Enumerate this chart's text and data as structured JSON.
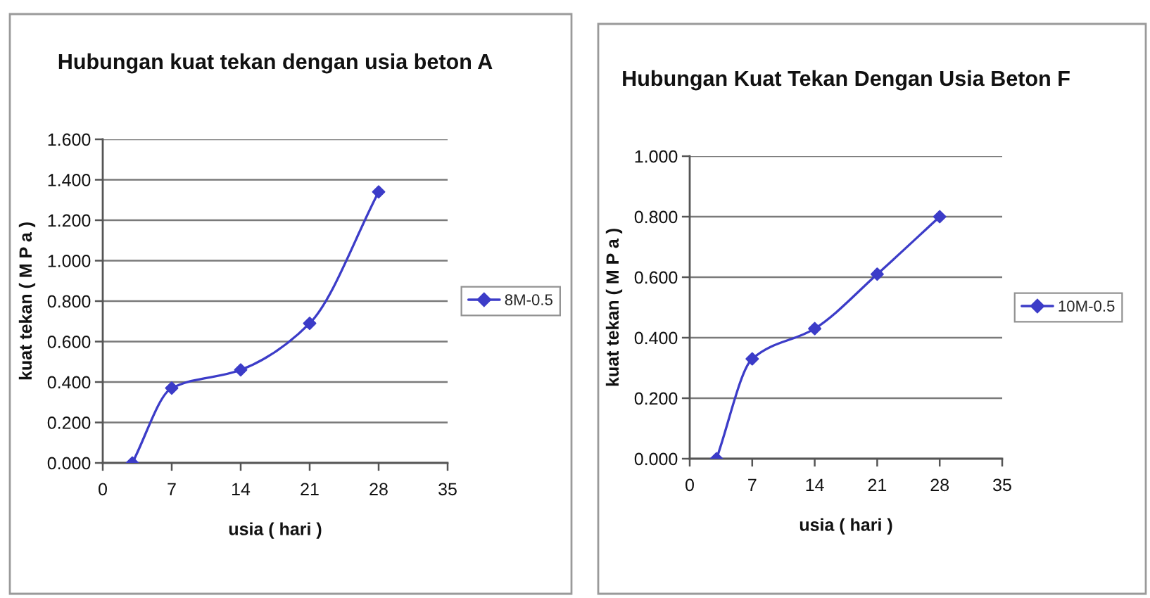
{
  "chart_data": [
    {
      "type": "line",
      "title": "Hubungan kuat tekan dengan usia beton A",
      "xlabel": "usia ( hari )",
      "ylabel": "kuat tekan ( M P a )",
      "x": [
        3,
        7,
        14,
        21,
        28
      ],
      "series": [
        {
          "name": "8M-0.5",
          "color": "#3c3cc8",
          "values": [
            0.0,
            0.37,
            0.46,
            0.69,
            1.34
          ]
        }
      ],
      "xlim": [
        0,
        35
      ],
      "xticks": [
        0,
        7,
        14,
        21,
        28,
        35
      ],
      "ylim": [
        0,
        1.6
      ],
      "yticks": [
        {
          "value": 0,
          "label": "0.000"
        },
        {
          "value": 0.2,
          "label": "0.200"
        },
        {
          "value": 0.4,
          "label": "0.400"
        },
        {
          "value": 0.6,
          "label": "0.600"
        },
        {
          "value": 0.8,
          "label": "0.800"
        },
        {
          "value": 1.0,
          "label": "1.000"
        },
        {
          "value": 1.2,
          "label": "1.200"
        },
        {
          "value": 1.4,
          "label": "1.400"
        },
        {
          "value": 1.6,
          "label": "1.600"
        }
      ],
      "grid": "y",
      "legend": "right",
      "marker": "diamond"
    },
    {
      "type": "line",
      "title": "Hubungan Kuat Tekan Dengan Usia Beton F",
      "xlabel": "usia ( hari )",
      "ylabel": "kuat tekan ( M P a )",
      "x": [
        3,
        7,
        14,
        21,
        28
      ],
      "series": [
        {
          "name": "10M-0.5",
          "color": "#3c3cc8",
          "values": [
            0.0,
            0.33,
            0.43,
            0.61,
            0.8
          ]
        }
      ],
      "xlim": [
        0,
        35
      ],
      "xticks": [
        0,
        7,
        14,
        21,
        28,
        35
      ],
      "ylim": [
        0,
        1.0
      ],
      "yticks": [
        {
          "value": 0,
          "label": "0.000"
        },
        {
          "value": 0.2,
          "label": "0.200"
        },
        {
          "value": 0.4,
          "label": "0.400"
        },
        {
          "value": 0.6,
          "label": "0.600"
        },
        {
          "value": 0.8,
          "label": "0.800"
        },
        {
          "value": 1.0,
          "label": "1.000"
        }
      ],
      "grid": "y",
      "legend": "right",
      "marker": "diamond"
    }
  ]
}
